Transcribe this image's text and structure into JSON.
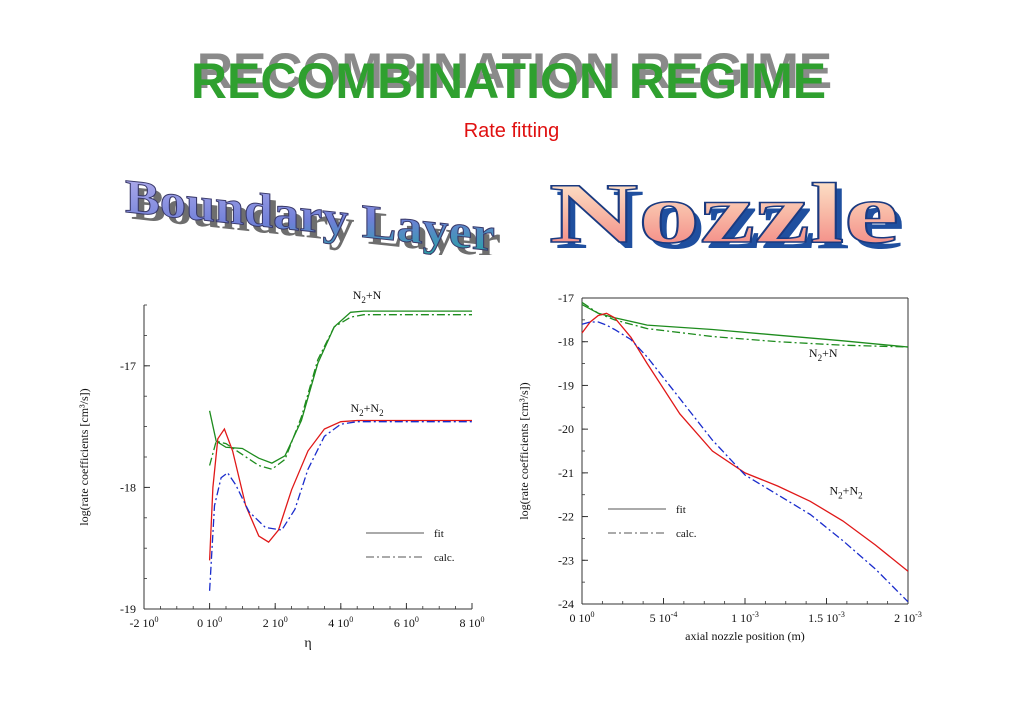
{
  "header": {
    "title": "RECOMBINATION REGIME",
    "subtitle": "Rate fitting"
  },
  "left_label": "Boundary Layer",
  "right_label": "Nozzle",
  "colors": {
    "title_green": "#2fa02f",
    "title_shadow": "#8a8a8a",
    "subtitle_red": "#e01010",
    "n2n_curves": "#1e8c1e",
    "n2n2_fit": "#e01818",
    "n2n2_calc": "#1a2ccc"
  },
  "legend": {
    "fit": "fit",
    "calc": "calc."
  },
  "chart_data": [
    {
      "type": "line",
      "title": "Boundary Layer",
      "xlabel": "η",
      "ylabel": "log(rate coefficients [cm³/s])",
      "xlim": [
        -2,
        8
      ],
      "ylim": [
        -19,
        -16.5
      ],
      "xticks": [
        {
          "v": -2,
          "label": "-2 10",
          "exp": "0"
        },
        {
          "v": 0,
          "label": "0 10",
          "exp": "0"
        },
        {
          "v": 2,
          "label": "2 10",
          "exp": "0"
        },
        {
          "v": 4,
          "label": "4 10",
          "exp": "0"
        },
        {
          "v": 6,
          "label": "6 10",
          "exp": "0"
        },
        {
          "v": 8,
          "label": "8 10",
          "exp": "0"
        }
      ],
      "yticks": [
        {
          "v": -17,
          "label": "-17"
        },
        {
          "v": -18,
          "label": "-18"
        },
        {
          "v": -19,
          "label": "-19"
        }
      ],
      "series_labels": [
        {
          "text": "N",
          "sub": "2",
          "rest": "+N",
          "x": 4.8,
          "y": -16.45
        },
        {
          "text": "N",
          "sub": "2",
          "rest": "+N",
          "sub2": "2",
          "x": 4.8,
          "y": -17.38
        }
      ],
      "series": [
        {
          "group": "N2+N",
          "style": "fit",
          "color": "#1e8c1e",
          "x": [
            0,
            0.2,
            0.5,
            1,
            1.5,
            1.9,
            2.3,
            2.8,
            3.3,
            3.8,
            4.3,
            4.7,
            5.5,
            8
          ],
          "y": [
            -17.37,
            -17.62,
            -17.67,
            -17.68,
            -17.76,
            -17.8,
            -17.74,
            -17.45,
            -16.98,
            -16.68,
            -16.56,
            -16.55,
            -16.55,
            -16.55
          ]
        },
        {
          "group": "N2+N",
          "style": "calc",
          "color": "#1e8c1e",
          "x": [
            0,
            0.2,
            0.5,
            1,
            1.5,
            1.9,
            2.3,
            2.8,
            3.3,
            3.8,
            4.3,
            4.7,
            5.5,
            8
          ],
          "y": [
            -17.82,
            -17.62,
            -17.64,
            -17.73,
            -17.82,
            -17.85,
            -17.77,
            -17.42,
            -16.95,
            -16.68,
            -16.6,
            -16.58,
            -16.58,
            -16.58
          ]
        },
        {
          "group": "N2+N2",
          "style": "fit",
          "color": "#e01818",
          "x": [
            0,
            0.1,
            0.25,
            0.45,
            0.7,
            1.1,
            1.5,
            1.8,
            2.1,
            2.5,
            3,
            3.5,
            4,
            4.5,
            6,
            8
          ],
          "y": [
            -18.6,
            -18.0,
            -17.6,
            -17.52,
            -17.7,
            -18.15,
            -18.4,
            -18.45,
            -18.35,
            -18.02,
            -17.7,
            -17.52,
            -17.46,
            -17.45,
            -17.45,
            -17.45
          ]
        },
        {
          "group": "N2+N2",
          "style": "calc",
          "color": "#1a2ccc",
          "x": [
            0,
            0.15,
            0.35,
            0.55,
            0.8,
            1.2,
            1.7,
            2.2,
            2.6,
            3,
            3.5,
            4,
            4.5,
            6,
            8
          ],
          "y": [
            -18.85,
            -18.15,
            -17.92,
            -17.88,
            -17.98,
            -18.2,
            -18.33,
            -18.35,
            -18.18,
            -17.85,
            -17.58,
            -17.48,
            -17.46,
            -17.46,
            -17.46
          ]
        }
      ],
      "legend_placement": "bottom-right"
    },
    {
      "type": "line",
      "title": "Nozzle",
      "xlabel": "axial nozzle position (m)",
      "ylabel": "log(rate coefficients [cm³/s])",
      "xlim": [
        0,
        0.002
      ],
      "ylim": [
        -24,
        -17
      ],
      "xticks": [
        {
          "v": 0,
          "label": "0 10",
          "exp": "0"
        },
        {
          "v": 0.0005,
          "label": "5 10",
          "exp": "-4"
        },
        {
          "v": 0.001,
          "label": "1 10",
          "exp": "-3"
        },
        {
          "v": 0.0015,
          "label": "1.5 10",
          "exp": "-3"
        },
        {
          "v": 0.002,
          "label": "2 10",
          "exp": "-3"
        }
      ],
      "yticks": [
        {
          "v": -17,
          "label": "-17"
        },
        {
          "v": -18,
          "label": "-18"
        },
        {
          "v": -19,
          "label": "-19"
        },
        {
          "v": -20,
          "label": "-20"
        },
        {
          "v": -21,
          "label": "-21"
        },
        {
          "v": -22,
          "label": "-22"
        },
        {
          "v": -23,
          "label": "-23"
        },
        {
          "v": -24,
          "label": "-24"
        }
      ],
      "series_labels": [
        {
          "text": "N",
          "sub": "2",
          "rest": "+N",
          "x": 0.00148,
          "y": -18.35
        },
        {
          "text": "N",
          "sub": "2",
          "rest": "+N",
          "sub2": "2",
          "x": 0.00162,
          "y": -21.5
        }
      ],
      "series": [
        {
          "group": "N2+N",
          "style": "fit",
          "color": "#1e8c1e",
          "x": [
            0,
            0.0001,
            0.0002,
            0.0004,
            0.0008,
            0.0012,
            0.0016,
            0.002
          ],
          "y": [
            -17.15,
            -17.35,
            -17.45,
            -17.62,
            -17.72,
            -17.85,
            -17.98,
            -18.12
          ]
        },
        {
          "group": "N2+N",
          "style": "calc",
          "color": "#1e8c1e",
          "x": [
            0,
            0.0001,
            0.0002,
            0.0004,
            0.0008,
            0.0012,
            0.0016,
            0.002
          ],
          "y": [
            -17.1,
            -17.35,
            -17.5,
            -17.7,
            -17.88,
            -18.0,
            -18.08,
            -18.12
          ]
        },
        {
          "group": "N2+N2",
          "style": "fit",
          "color": "#e01818",
          "x": [
            0,
            5e-05,
            0.0001,
            0.00015,
            0.0002,
            0.0003,
            0.0004,
            0.0006,
            0.0008,
            0.001,
            0.0012,
            0.0014,
            0.0016,
            0.0018,
            0.002
          ],
          "y": [
            -17.8,
            -17.55,
            -17.4,
            -17.35,
            -17.45,
            -17.9,
            -18.5,
            -19.65,
            -20.5,
            -21.0,
            -21.3,
            -21.65,
            -22.1,
            -22.65,
            -23.25
          ]
        },
        {
          "group": "N2+N2",
          "style": "calc",
          "color": "#1a2ccc",
          "x": [
            0,
            5e-05,
            0.0001,
            0.00015,
            0.0002,
            0.0003,
            0.0004,
            0.0006,
            0.0008,
            0.001,
            0.0012,
            0.0014,
            0.0016,
            0.0018,
            0.002
          ],
          "y": [
            -17.6,
            -17.55,
            -17.55,
            -17.62,
            -17.72,
            -17.95,
            -18.35,
            -19.3,
            -20.25,
            -21.05,
            -21.5,
            -21.95,
            -22.55,
            -23.2,
            -23.95
          ]
        }
      ],
      "legend_placement": "bottom-left"
    }
  ]
}
